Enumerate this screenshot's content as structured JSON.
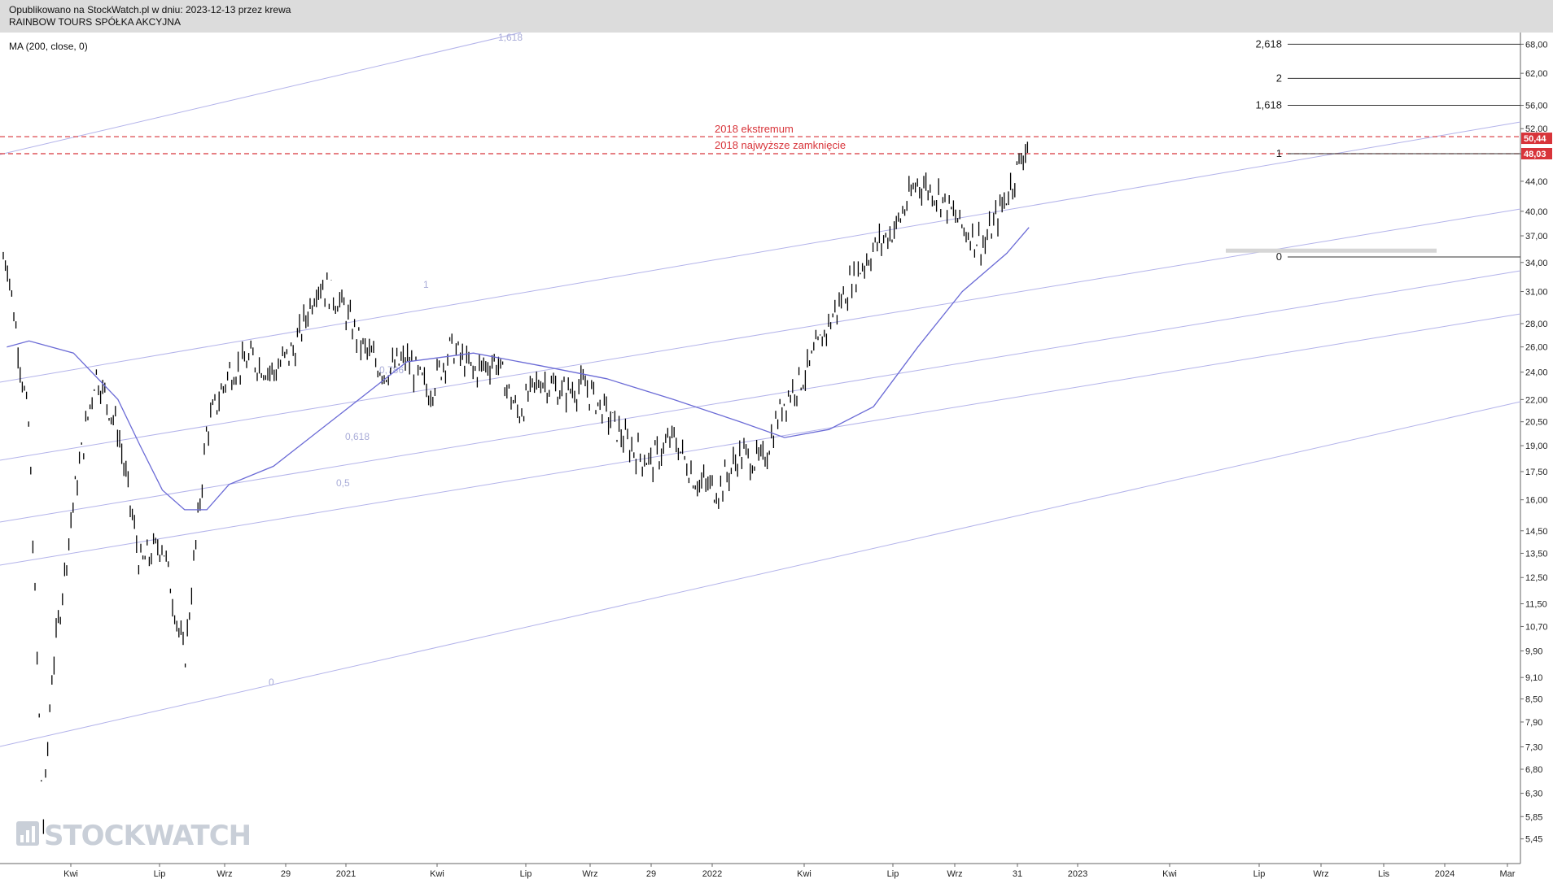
{
  "header": {
    "published": "Opublikowano na StockWatch.pl w dniu: 2023-12-13 przez krewa",
    "instrument": "RAINBOW TOURS SPÓŁKA AKCYJNA"
  },
  "indicator_label": "MA (200, close, 0)",
  "logo_text": "STOCKWATCH",
  "colors": {
    "price": "#000000",
    "ma": "#6b6bd6",
    "channel": "#b3b3ea",
    "red": "#d8343a",
    "header_bg": "#dcdcdc"
  },
  "chart_data": {
    "type": "line",
    "x_ticks": [
      "Kwi",
      "Lip",
      "Wrz",
      "29",
      "2021",
      "Kwi",
      "Lip",
      "Wrz",
      "29",
      "2022",
      "Kwi",
      "Lip",
      "Wrz",
      "31",
      "2023",
      "Kwi",
      "Lip",
      "Wrz",
      "Lis",
      "2024",
      "Mar"
    ],
    "y_ticks": [
      "68,00",
      "62,00",
      "56,00",
      "52,00",
      "48,00",
      "44,00",
      "40,00",
      "37,00",
      "34,00",
      "31,00",
      "28,00",
      "26,00",
      "24,00",
      "22,00",
      "20,50",
      "19,00",
      "17,50",
      "16,00",
      "14,50",
      "13,50",
      "12,50",
      "11,50",
      "10,70",
      "9,90",
      "9,10",
      "8,50",
      "7,90",
      "7,30",
      "6,80",
      "6,30",
      "5,85",
      "5,45"
    ],
    "y_scale": "log",
    "price_labels": {
      "last": "50,44",
      "resistance": "48,03"
    },
    "red_lines": [
      {
        "label": "2018 ekstremum",
        "value": 50.7
      },
      {
        "label": "2018 najwyższe zamknięcie",
        "value": 48.03
      }
    ],
    "fib_right": [
      {
        "label": "2,618",
        "value": 68.0
      },
      {
        "label": "2",
        "value": 61.0
      },
      {
        "label": "1,618",
        "value": 56.0
      },
      {
        "label": "1",
        "value": 48.03
      },
      {
        "label": "0",
        "value": 34.6
      }
    ],
    "channel_labels": [
      "1,618",
      "1",
      "0,786",
      "0,618",
      "0,5",
      "0"
    ],
    "price_series": {
      "name": "",
      "x": [
        "2020-02",
        "2020-03",
        "2020-03-20",
        "2020-04",
        "2020-05",
        "2020-06",
        "2020-07",
        "2020-08",
        "2020-09",
        "2020-10",
        "2020-11",
        "2020-12",
        "2021-01",
        "2021-02",
        "2021-03",
        "2021-04",
        "2021-05",
        "2021-06",
        "2021-07",
        "2021-08",
        "2021-09",
        "2021-10",
        "2021-11",
        "2021-12",
        "2022-01",
        "2022-02",
        "2022-03",
        "2022-04",
        "2022-05",
        "2022-06",
        "2022-07",
        "2022-08",
        "2022-09",
        "2022-10",
        "2022-11",
        "2022-12",
        "2023-01",
        "2023-02",
        "2023-03",
        "2023-04",
        "2023-05",
        "2023-06",
        "2023-07",
        "2023-08",
        "2023-09",
        "2023-10",
        "2023-11",
        "2023-12"
      ],
      "y": [
        34.5,
        20.0,
        5.6,
        9.0,
        16.0,
        24.0,
        20.0,
        13.0,
        14.0,
        9.6,
        20.0,
        24.0,
        25.0,
        24.0,
        26.0,
        32.0,
        30.0,
        26.0,
        24.0,
        25.0,
        22.5,
        26.0,
        24.0,
        25.0,
        21.0,
        23.5,
        22.5,
        23.0,
        21.0,
        19.0,
        18.0,
        19.5,
        17.0,
        16.5,
        18.5,
        18.0,
        22.0,
        24.0,
        28.0,
        32.0,
        35.5,
        38.0,
        44.0,
        42.0,
        38.0,
        36.0,
        42.0,
        50.44
      ]
    },
    "ma_series": {
      "name": "MA (200, close, 0)",
      "x": [
        "2020-02",
        "2020-03",
        "2020-05",
        "2020-07",
        "2020-08",
        "2020-09",
        "2020-10",
        "2020-11",
        "2020-12",
        "2021-02",
        "2021-05",
        "2021-08",
        "2021-11",
        "2022-02",
        "2022-05",
        "2022-08",
        "2022-11",
        "2023-01",
        "2023-03",
        "2023-05",
        "2023-07",
        "2023-09",
        "2023-11",
        "2023-12"
      ],
      "y": [
        26.0,
        26.5,
        25.5,
        22.0,
        19.0,
        16.5,
        15.5,
        15.5,
        16.8,
        17.8,
        21.0,
        24.8,
        25.5,
        24.5,
        23.5,
        22.0,
        20.5,
        19.5,
        20.0,
        21.5,
        26.0,
        31.0,
        35.0,
        38.0
      ]
    }
  }
}
